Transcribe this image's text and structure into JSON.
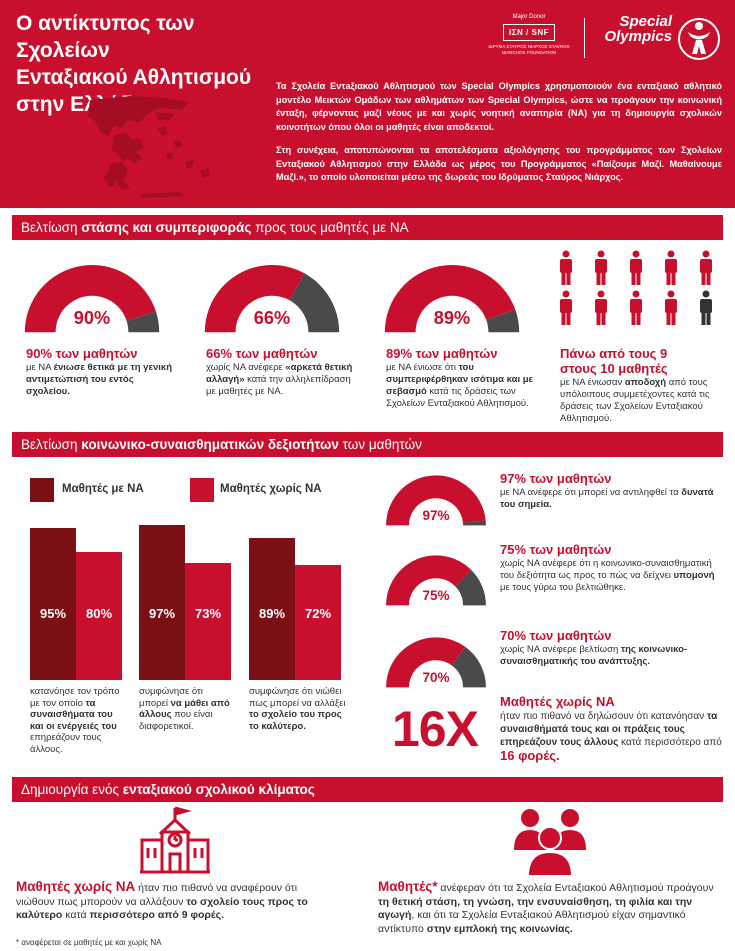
{
  "header": {
    "title_lines": [
      "Ο αντίκτυπος των Σχολείων",
      "Ενταξιακού Αθλητισμού",
      "στην Ελλάδα"
    ],
    "major_donor": "Major Donor",
    "snf_logo": "IΣN / SNF",
    "snf_sub": "ΙΔΡΥΜΑ ΣΤΑΥΡΟΣ ΝΙΑΡΧΟΣ STAVROS NIARCHOS FOUNDATION",
    "so_logo_line1": "Special",
    "so_logo_line2": "Olympics",
    "intro_p1": "Τα Σχολεία Εντaξιακού Αθλητισμού των Special Olympics χρησιμοποιούν ένα ενταξιακό αθλητικό μοντέλο Μεικτών Ομάδων των αθλημάτων των Special Olympics, ώστε να προάγουν την κοινωνική ένταξη, φέρνοντας μαζί νέους με και χωρίς νοητική αναπηρία (ΝΑ) για τη δημιουργία σχολικών κοινοτήτων όπου όλοι οι μαθητές είναι αποδεκτοί.",
    "intro_p2": "Στη συνέχεια, αποτυπώνονται τα αποτελέσματα αξιολόγησης του προγράμματος των Σχολείων Ενταξιακού Αθλητισμού στην Ελλάδα ως μέρος του Προγράμματος «Παίζουμε Μαζί. Μαθαίνουμε Μαζί.», το οποίο υλοποιείται μέσω της δωρεάς του Ιδρύματος Σταύρος Νιάρχος."
  },
  "section1": {
    "bar_pre": "Βελτίωση ",
    "bar_bold": "στάσης και συμπεριφοράς",
    "bar_post": " προς τους μαθητές με ΝΑ",
    "gauges": [
      {
        "pct": 0.9,
        "label": "90%",
        "head": "90% των μαθητών",
        "body_pre": "με ΝΑ ",
        "body_bold": "ένιωσε θετικά με τη γενική αντιμετώπισή του εντός σχολείου.",
        "body_post": ""
      },
      {
        "pct": 0.66,
        "label": "66%",
        "head": "66% των μαθητών",
        "body_pre": "χωρίς ΝΑ ανέφερε ",
        "body_bold": "«αρκετά θετική αλλαγή»",
        "body_post": " κατά την αλληλεπίδραση με μαθητές με ΝΑ."
      },
      {
        "pct": 0.89,
        "label": "89%",
        "head": "89% των μαθητών",
        "body_pre": "με ΝΑ ένιωσε ότι ",
        "body_bold": "του συμπεριφέρθηκαν ισότιμα και με σεβασμό",
        "body_post": " κατά τις δράσεις των Σχολείων Ενταξιακού Αθλητισμού."
      }
    ],
    "people_head_line1": "Πάνω από τους 9",
    "people_head_line2": "στους 10 μαθητές",
    "people_body_pre": "με ΝΑ ένιωσαν ",
    "people_body_bold": "αποδοχή",
    "people_body_post": " από τους υπόλοιπους συμμετέχοντες κατά τις δράσεις των Σχολείων Ενταξιακού Αθλητισμού.",
    "people_total": 10,
    "people_highlighted": 9
  },
  "section2": {
    "bar_pre": "Βελτίωση ",
    "bar_bold": "κοινωνικο-συναισθηματικών δεξιοτήτων",
    "bar_post": " των μαθητών",
    "legend": [
      "Μαθητές με ΝΑ",
      "Μαθητές χωρίς ΝΑ"
    ],
    "colors": {
      "with_na": "#7a0f14",
      "without_na": "#c8102e",
      "gray": "#4a4a4a"
    },
    "chart_data": {
      "type": "bar",
      "categories": [
        "1",
        "2",
        "3"
      ],
      "series": [
        {
          "name": "Μαθητές με ΝΑ",
          "values": [
            95,
            97,
            89
          ]
        },
        {
          "name": "Μαθητές χωρίς ΝΑ",
          "values": [
            80,
            73,
            72
          ]
        }
      ],
      "data_labels": [
        [
          "95%",
          "80%"
        ],
        [
          "97%",
          "73%"
        ],
        [
          "89%",
          "72%"
        ]
      ],
      "ylim": [
        0,
        100
      ]
    },
    "captions": [
      {
        "pre": "κατανόησε τον τρόπο με τον οποίο ",
        "bold": "τα συναισθήματα του και οι ενέργειές του",
        "post": " επηρεάζουν τους άλλους."
      },
      {
        "pre": "συμφώνησε ότι μπορεί ",
        "bold": "να μάθει από άλλους",
        "post": " που είναι διαφορετικοί."
      },
      {
        "pre": "συμφώνησε ότι νιώθει πως μπορεί να αλλάξει ",
        "bold": "το σχολείο του προς το καλύτερο.",
        "post": ""
      }
    ],
    "gauges": [
      {
        "pct": 0.97,
        "label": "97%",
        "head": "97% των μαθητών",
        "body_pre": "με ΝΑ ανέφερε ότι μπορεί να αντιληφθεί τα ",
        "body_bold": "δυνατά του σημεία.",
        "body_post": ""
      },
      {
        "pct": 0.75,
        "label": "75%",
        "head": "75% των μαθητών",
        "body_pre": "χωρίς ΝΑ ανέφερε ότι η κοινωνικο-συναισθηματική του δεξιότητα ως προς το πώς να δείχνει ",
        "body_bold": "υπομονή",
        "body_post": " με τους γύρω του βελτιώθηκε."
      },
      {
        "pct": 0.7,
        "label": "70%",
        "head": "70% των μαθητών",
        "body_pre": "χωρίς ΝΑ ανέφερε βελτίωση ",
        "body_bold": "της κοινωνικο-συναισθηματικής του ανάπτυξης.",
        "body_post": ""
      }
    ],
    "big_stat": "16X",
    "big_head": "Μαθητές χωρίς ΝΑ",
    "big_body_pre": "ήταν πιο πιθανό να δηλώσουν ότι κατανόησαν ",
    "big_body_bold": "τα συναισθήματά τους και οι πράξεις τους επηρεάζουν τους άλλους",
    "big_body_mid": " κατά περισσότερο από ",
    "big_body_end": "16 φορές."
  },
  "section3": {
    "bar_pre": "Δημιουργία ενός ",
    "bar_bold": "ενταξιακού σχολικού κλίματος",
    "bar_post": "",
    "left_lead": "Μαθητές χωρίς ΝΑ",
    "left_pre": " ήταν πιο πιθανό να αναφέρουν ότι νιώθουν πως μπορούν να αλλάξουν ",
    "left_bold": "το σχολείο τους προς το καλύτερο",
    "left_mid": " κατά ",
    "left_end": "περισσότερο από 9 φορές.",
    "right_lead": "Μαθητές*",
    "right_pre": " ανέφεραν ότι τα Σχολεία Εντaξιακού Αθλητισμού προάγουν ",
    "right_bold": "τη θετική στάση, τη γνώση, την ενσυναίσθηση, τη φιλία και την αγωγή",
    "right_mid": ", και ότι τα Σχολεία Εντaξιακού Αθλητισμού είχαν σημαντικό αντίκτυπο ",
    "right_end": "στην εμπλοκή της κοινωνίας.",
    "footnote": "* αναφέρεται σε μαθητές με και χωρίς ΝΑ",
    "icons": [
      "school-icon",
      "group-people-icon"
    ]
  }
}
